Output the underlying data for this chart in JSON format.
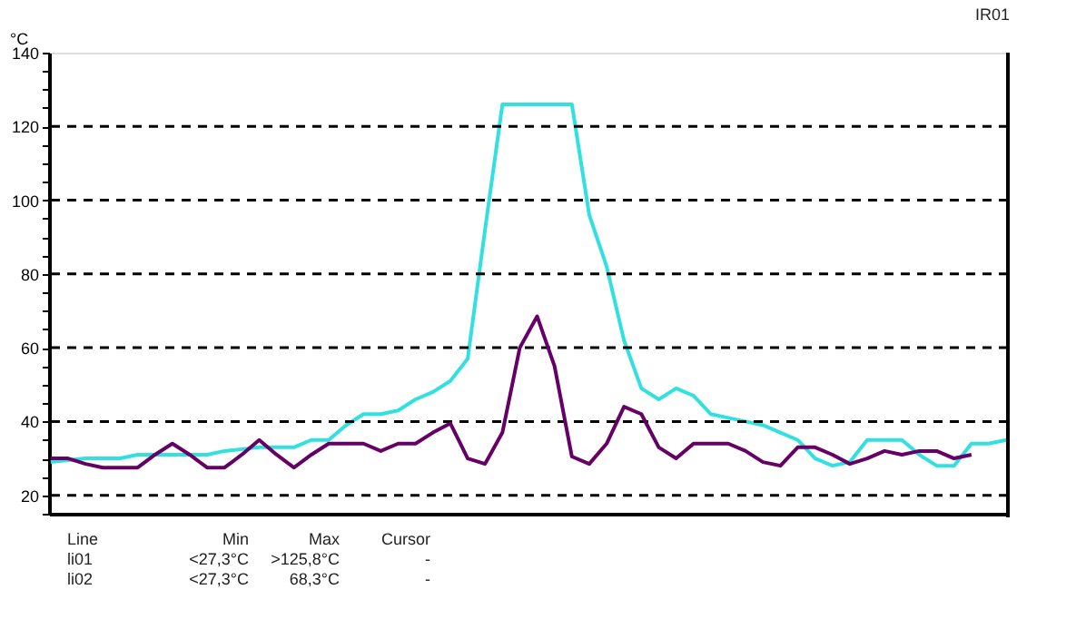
{
  "chart_data": {
    "type": "line",
    "title": "IR01",
    "ylabel": "°C",
    "categories": [
      null,
      null,
      null,
      null,
      null,
      null,
      null,
      null,
      null,
      null,
      null,
      null,
      null,
      null,
      null,
      null,
      null,
      null,
      null,
      null,
      null,
      null,
      null,
      null,
      null,
      null,
      null,
      null,
      null,
      null,
      null,
      null,
      null,
      null,
      null,
      null,
      null,
      null,
      null,
      null,
      null,
      null,
      null,
      null,
      null,
      null,
      null,
      null,
      null,
      null,
      null,
      null,
      null,
      null,
      null,
      null
    ],
    "series": [
      {
        "color": "#33e0e0",
        "values": [
          29,
          29.5,
          30,
          30,
          30,
          31,
          31,
          31,
          31,
          31,
          32,
          32.5,
          33,
          33,
          33,
          35,
          35,
          39,
          42,
          42,
          43,
          46,
          48,
          51,
          57,
          92,
          126,
          126,
          126,
          126,
          126,
          96,
          82,
          62,
          49,
          46,
          49,
          47,
          42,
          41,
          40,
          39,
          37,
          35,
          30,
          28,
          29,
          35,
          35,
          35,
          31,
          28,
          28,
          34,
          34,
          35
        ]
      },
      {
        "color": "#660066",
        "values": [
          30,
          30,
          28.5,
          27.5,
          27.5,
          27.5,
          31,
          34,
          31,
          27.5,
          27.5,
          31,
          35,
          31,
          27.5,
          31,
          34,
          34,
          34,
          32,
          34,
          34,
          37,
          39.5,
          30,
          28.5,
          37,
          60,
          68.5,
          55,
          30.5,
          28.5,
          34,
          44,
          42,
          33,
          30,
          34,
          34,
          34,
          32,
          29,
          28,
          33,
          33,
          31,
          28.5,
          30,
          32,
          31,
          32,
          32,
          30,
          31,
          null,
          null
        ]
      }
    ],
    "ylim": [
      15,
      140
    ],
    "yticks": [
      {
        "value": 15,
        "label": null
      },
      20,
      {
        "value": 25,
        "label": null
      },
      {
        "value": 30,
        "label": null
      },
      {
        "value": 35,
        "label": null
      },
      40,
      {
        "value": 45,
        "label": null
      },
      {
        "value": 50,
        "label": null
      },
      {
        "value": 55,
        "label": null
      },
      60,
      {
        "value": 65,
        "label": null
      },
      {
        "value": 70,
        "label": null
      },
      {
        "value": 75,
        "label": null
      },
      80,
      {
        "value": 85,
        "label": null
      },
      {
        "value": 90,
        "label": null
      },
      {
        "value": 95,
        "label": null
      },
      100,
      {
        "value": 105,
        "label": null
      },
      {
        "value": 110,
        "label": null
      },
      {
        "value": 115,
        "label": null
      },
      120,
      {
        "value": 125,
        "label": null
      },
      {
        "value": 130,
        "label": null
      },
      {
        "value": 135,
        "label": null
      },
      140
    ],
    "grid": "y",
    "line_style": "solid",
    "tick_labels": "y",
    "annotations": [
      "Line",
      "Min",
      "Max",
      "Cursor",
      "li01",
      "<27,3°C",
      ">125,8°C",
      "-",
      "li02",
      "<27,3°C",
      "68,3°C",
      "-"
    ]
  }
}
